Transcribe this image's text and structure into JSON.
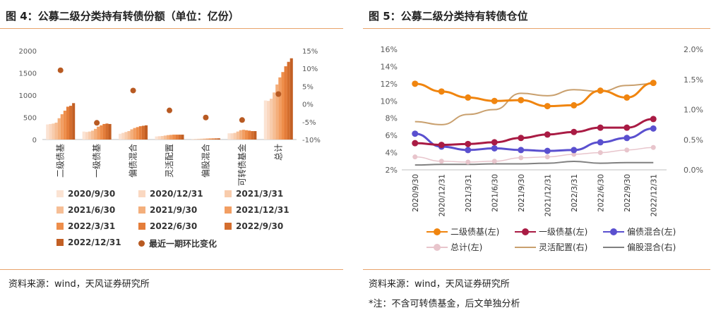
{
  "fig4": {
    "title": "图 4：公募二级分类持有转债份额（单位：亿份）",
    "source": "资料来源：wind，天风证券研究所"
  },
  "fig5": {
    "title": "图 5：公募二级分类持有转债仓位",
    "source": "资料来源：wind，天风证券研究所",
    "note": "*注：不含可转债基金，后文单独分析"
  },
  "chart_data": [
    {
      "type": "bar",
      "categories": [
        "二级债基",
        "一级债基",
        "偏债混合",
        "灵活配置",
        "偏股混合",
        "可转债基金",
        "总计"
      ],
      "series": [
        {
          "name": "2020/9/30",
          "color": "#FBE3D3",
          "values": [
            340,
            180,
            130,
            70,
            15,
            140,
            880
          ]
        },
        {
          "name": "2020/12/31",
          "color": "#FAD8C1",
          "values": [
            350,
            170,
            150,
            75,
            16,
            140,
            870
          ]
        },
        {
          "name": "2021/3/31",
          "color": "#F8CCAC",
          "values": [
            360,
            180,
            170,
            80,
            17,
            150,
            920
          ]
        },
        {
          "name": "2021/6/30",
          "color": "#F6BE95",
          "values": [
            380,
            200,
            190,
            90,
            18,
            180,
            1060
          ]
        },
        {
          "name": "2021/9/30",
          "color": "#F4AF7C",
          "values": [
            480,
            240,
            230,
            100,
            20,
            210,
            1240
          ]
        },
        {
          "name": "2021/12/31",
          "color": "#F29E62",
          "values": [
            570,
            290,
            260,
            105,
            22,
            220,
            1400
          ]
        },
        {
          "name": "2022/3/31",
          "color": "#EE8E4B",
          "values": [
            650,
            320,
            280,
            110,
            24,
            210,
            1520
          ]
        },
        {
          "name": "2022/6/30",
          "color": "#E47D3A",
          "values": [
            740,
            350,
            300,
            110,
            25,
            200,
            1650
          ]
        },
        {
          "name": "2022/9/30",
          "color": "#D46E2E",
          "values": [
            760,
            360,
            310,
            110,
            26,
            190,
            1750
          ]
        },
        {
          "name": "2022/12/31",
          "color": "#C25F24",
          "values": [
            820,
            350,
            320,
            110,
            27,
            190,
            1830
          ]
        }
      ],
      "secondary_series": {
        "name": "最近一期环比变化",
        "color": "#B85A22",
        "values": [
          9.5,
          -5.3,
          3.8,
          -1.8,
          -3.8,
          -4.5,
          2.8
        ]
      },
      "y_ticks": [
        "0",
        "500",
        "1000",
        "1500",
        "2000"
      ],
      "y2_ticks": [
        "-10%",
        "-5%",
        "0%",
        "5%",
        "10%",
        "15%"
      ],
      "ylim": [
        0,
        2000
      ],
      "y2lim": [
        -10,
        15
      ],
      "legend_position": "bottom"
    },
    {
      "type": "line",
      "x": [
        "2020/9/30",
        "2020/12/31",
        "2021/3/31",
        "2021/6/30",
        "2021/9/30",
        "2021/12/31",
        "2022/3/31",
        "2022/6/30",
        "2022/9/30",
        "2022/12/31"
      ],
      "y_ticks": [
        "2%",
        "4%",
        "6%",
        "8%",
        "10%",
        "12%",
        "14%",
        "16%"
      ],
      "y2_ticks": [
        "0.0%",
        "0.5%",
        "1.0%",
        "1.5%",
        "2.0%"
      ],
      "ylim": [
        2,
        16
      ],
      "y2lim": [
        0,
        2
      ],
      "series": [
        {
          "name": "二级债基(左)",
          "axis": "left",
          "color": "#F0850F",
          "width": 3,
          "marker": true,
          "values": [
            12.0,
            11.1,
            10.4,
            10.0,
            10.1,
            9.4,
            9.5,
            11.2,
            10.4,
            12.1
          ]
        },
        {
          "name": "一级债基(左)",
          "axis": "left",
          "color": "#A91B44",
          "width": 3,
          "marker": true,
          "values": [
            5.1,
            4.9,
            5.0,
            5.2,
            5.7,
            6.1,
            6.4,
            6.9,
            6.9,
            7.9
          ]
        },
        {
          "name": "偏债混合(左)",
          "axis": "left",
          "color": "#5A50CF",
          "width": 3,
          "marker": true,
          "values": [
            6.2,
            4.7,
            4.3,
            4.5,
            4.3,
            4.2,
            4.3,
            5.2,
            5.7,
            6.8
          ]
        },
        {
          "name": "总计(左)",
          "axis": "left",
          "color": "#E8C5CC",
          "width": 1.5,
          "marker": true,
          "values": [
            3.5,
            3.0,
            2.9,
            3.0,
            3.4,
            3.5,
            3.8,
            4.0,
            4.3,
            4.6
          ]
        },
        {
          "name": "灵活配置(右)",
          "axis": "right",
          "color": "#C9A06E",
          "width": 2,
          "marker": false,
          "values": [
            0.8,
            0.75,
            0.92,
            1.0,
            1.27,
            1.23,
            1.33,
            1.3,
            1.4,
            1.43
          ]
        },
        {
          "name": "偏股混合(右)",
          "axis": "right",
          "color": "#808080",
          "width": 2,
          "marker": false,
          "values": [
            0.08,
            0.09,
            0.09,
            0.1,
            0.1,
            0.11,
            0.14,
            0.11,
            0.12,
            0.12
          ]
        }
      ],
      "legend_position": "bottom"
    }
  ]
}
